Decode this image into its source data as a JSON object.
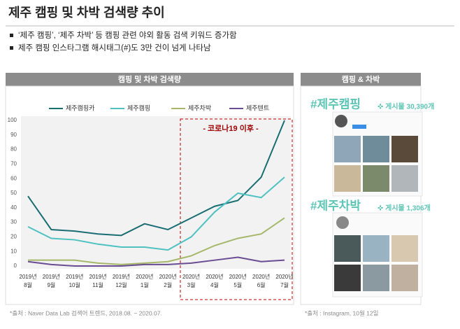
{
  "header": {
    "title": "제주 캠핑 및 차박 검색량 추이",
    "bullets": [
      "‘제주 캠핑’, ‘제주 차박’ 등 캠핑 관련 야외 활동 검색 키워드 증가함",
      "제주 캠핑 인스타그램 해시태그(#)도 3만 건이 넘게 나타남"
    ]
  },
  "chart_data": {
    "type": "line",
    "title": "캠핑 및 차박 검색량",
    "annotation": "- 코로나19 이후 -",
    "categories": [
      "2019년 8월",
      "2019년 9월",
      "2019년 10월",
      "2019년 11월",
      "2019년 12월",
      "2020년 1월",
      "2020년 2월",
      "2020년 3월",
      "2020년 4월",
      "2020년 5월",
      "2020년 6월",
      "2020년 7월"
    ],
    "series": [
      {
        "name": "제주캠핑카",
        "color": "#1a6e73",
        "values": [
          48,
          25,
          24,
          22,
          21,
          29,
          25,
          33,
          41,
          45,
          61,
          100
        ]
      },
      {
        "name": "제주캠핑",
        "color": "#4fc1c1",
        "values": [
          27,
          19,
          18,
          15,
          13,
          13,
          11,
          20,
          37,
          50,
          47,
          61
        ]
      },
      {
        "name": "제주차박",
        "color": "#a6b76a",
        "values": [
          4,
          4,
          4,
          2,
          1,
          2,
          3,
          7,
          14,
          19,
          22,
          33
        ]
      },
      {
        "name": "제주텐트",
        "color": "#6a4c93",
        "values": [
          3,
          1,
          0,
          0,
          0,
          1,
          1,
          2,
          4,
          6,
          3,
          4
        ]
      }
    ],
    "ylim": [
      0,
      100
    ],
    "yticks": [
      0,
      10,
      20,
      30,
      40,
      50,
      60,
      70,
      80,
      90,
      100
    ],
    "grid": false,
    "legend": "top",
    "source": "*출처 : Naver Data Lab 검색어 트렌드, 2018.08. ~ 2020.07."
  },
  "side_panel": {
    "title": "캠핑 & 차박",
    "tag1": "#제주캠핑",
    "count1": "✜ 게시물 30,390개",
    "tag2": "#제주차박",
    "count2": "✜ 게시물 1,306개",
    "source": "*출처 : Instagram, 10월 12일"
  }
}
